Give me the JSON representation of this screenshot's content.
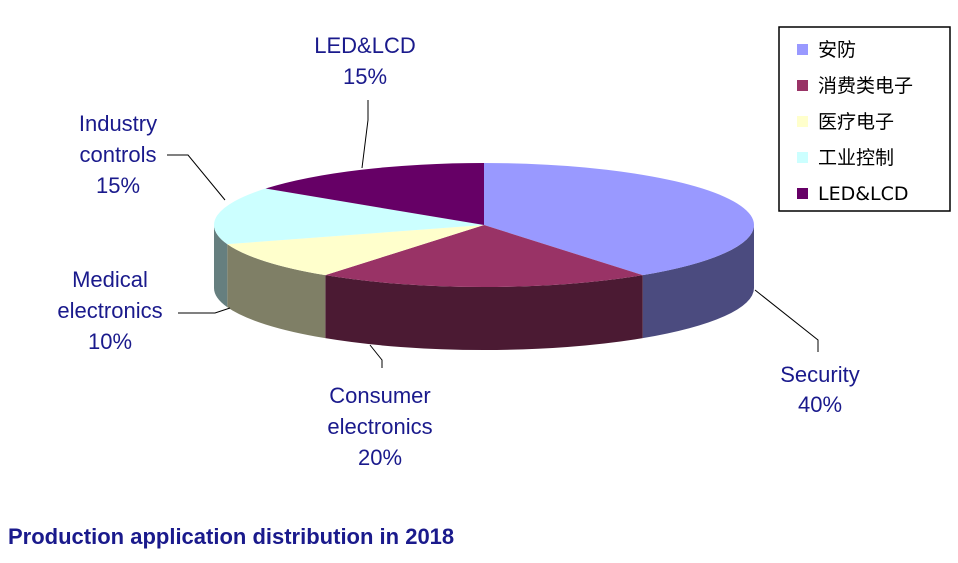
{
  "chart_data": {
    "type": "pie",
    "title": "Production application distribution in 2018",
    "slices": [
      {
        "label": [
          "Security"
        ],
        "percent_label": "40%",
        "legend": "安防",
        "value": 40,
        "color": "#9999ff",
        "side_color": "#4b4b7f"
      },
      {
        "label": [
          "Consumer",
          "electronics"
        ],
        "percent_label": "20%",
        "legend": "消费类电子",
        "value": 20,
        "color": "#993366",
        "side_color": "#4b1a33"
      },
      {
        "label": [
          "Medical",
          "electronics"
        ],
        "percent_label": "10%",
        "legend": "医疗电子",
        "value": 10,
        "color": "#ffffcc",
        "side_color": "#7f7f66"
      },
      {
        "label": [
          "Industry",
          "controls"
        ],
        "percent_label": "15%",
        "legend": "工业控制",
        "value": 15,
        "color": "#ccffff",
        "side_color": "#667f7f"
      },
      {
        "label": [
          "LED&LCD"
        ],
        "percent_label": "15%",
        "legend": "LED&LCD",
        "value": 15,
        "color": "#660066",
        "side_color": "#330033"
      }
    ],
    "legend_position": "top-right"
  }
}
